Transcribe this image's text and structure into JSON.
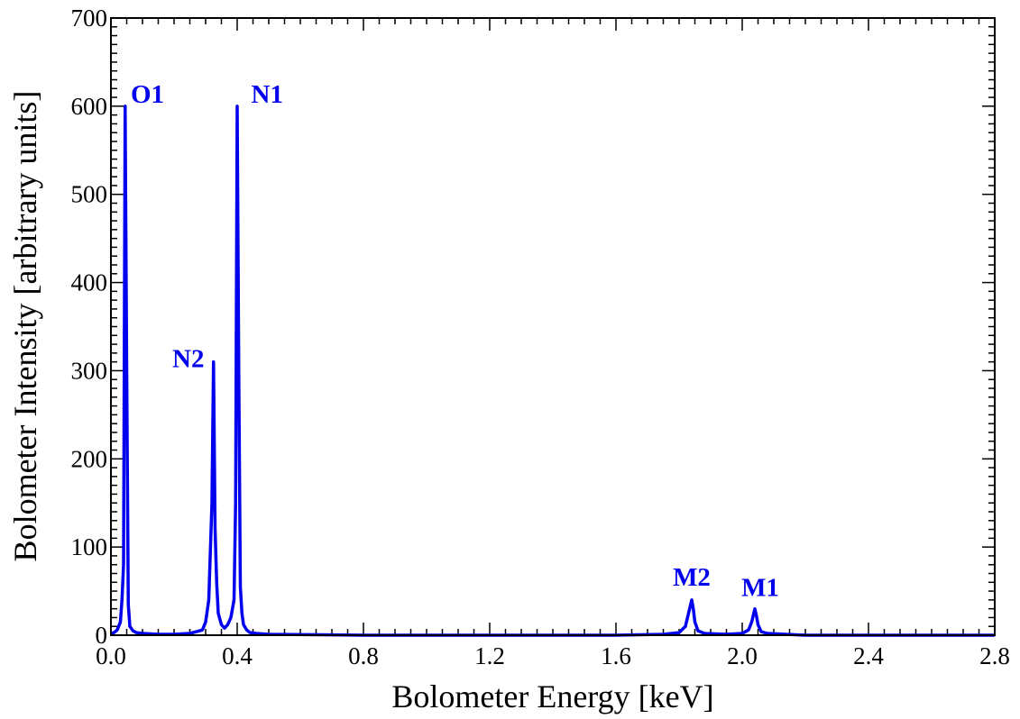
{
  "chart_data": {
    "type": "line",
    "title": "",
    "xlabel": "Bolometer Energy [keV]",
    "ylabel": "Bolometer Intensity [arbitrary units]",
    "xlim": [
      0.0,
      2.8
    ],
    "ylim": [
      0,
      700
    ],
    "x_ticks": [
      "0.0",
      "0.4",
      "0.8",
      "1.2",
      "1.6",
      "2.0",
      "2.4",
      "2.8"
    ],
    "y_ticks": [
      "0",
      "100",
      "200",
      "300",
      "400",
      "500",
      "600",
      "700"
    ],
    "grid": false,
    "legend": "none",
    "line_color": "#0000ee",
    "series": [
      {
        "x": [
          0.0,
          0.01,
          0.02,
          0.03,
          0.035,
          0.04,
          0.045,
          0.05,
          0.055,
          0.06,
          0.07,
          0.08,
          0.1,
          0.15,
          0.2,
          0.25,
          0.29,
          0.3,
          0.31,
          0.32,
          0.325,
          0.33,
          0.335,
          0.34,
          0.35,
          0.36,
          0.37,
          0.38,
          0.39,
          0.395,
          0.4,
          0.405,
          0.41,
          0.415,
          0.42,
          0.43,
          0.44,
          0.46,
          0.5,
          0.8,
          1.2,
          1.6,
          1.75,
          1.8,
          1.82,
          1.83,
          1.84,
          1.845,
          1.85,
          1.86,
          1.88,
          1.95,
          2.0,
          2.02,
          2.03,
          2.04,
          2.045,
          2.05,
          2.06,
          2.08,
          2.2,
          2.4,
          2.8
        ],
        "y": [
          2,
          3,
          6,
          15,
          40,
          80,
          600,
          300,
          35,
          10,
          5,
          3,
          2,
          1,
          1,
          2,
          6,
          15,
          40,
          150,
          310,
          120,
          60,
          25,
          12,
          8,
          12,
          20,
          40,
          150,
          600,
          300,
          55,
          25,
          12,
          6,
          3,
          2,
          1,
          0,
          0,
          0,
          1,
          3,
          10,
          25,
          40,
          30,
          15,
          5,
          2,
          1,
          2,
          6,
          15,
          30,
          22,
          12,
          4,
          2,
          0,
          0,
          0
        ]
      }
    ],
    "annotations": [
      {
        "text": "O1",
        "x": 0.04,
        "y": 600
      },
      {
        "text": "N2",
        "x": 0.33,
        "y": 310
      },
      {
        "text": "N1",
        "x": 0.41,
        "y": 600
      },
      {
        "text": "M2",
        "x": 1.84,
        "y": 40
      },
      {
        "text": "M1",
        "x": 2.04,
        "y": 30
      }
    ]
  }
}
